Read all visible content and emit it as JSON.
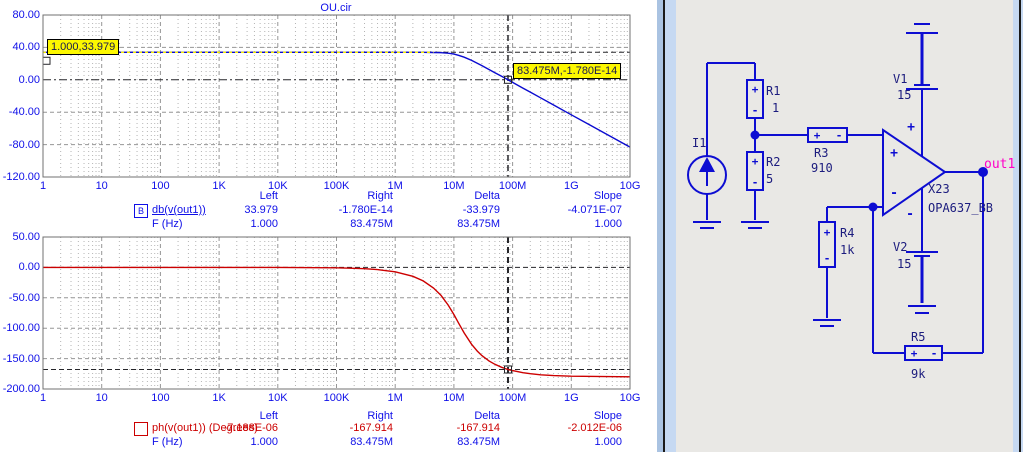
{
  "window": {
    "title": "OU.cir"
  },
  "colors": {
    "axis_text": "#0f0fe8",
    "mag_trace": "#0b0bd0",
    "phase_trace": "#cc0000",
    "grid_major": "#969696",
    "grid_minor": "#b4b4b4",
    "cursor_line": "#26262a",
    "cursor_highlight": "#f5ec00",
    "cursor_label_bg": "#fdf800",
    "wire": "#0d0dd2",
    "component_text": "#1c1c7e",
    "node_text": "#ff00c8",
    "schematic_bg": "#e9e8e5"
  },
  "bode": {
    "xticks": [
      "1",
      "10",
      "100",
      "1K",
      "10K",
      "100K",
      "1M",
      "10M",
      "100M",
      "1G",
      "10G"
    ],
    "mag": {
      "yticks": [
        "80.00",
        "40.00",
        "0.00",
        "-40.00",
        "-80.00",
        "-120.00"
      ],
      "legend": "db(v(out1))",
      "legend_box": "B",
      "xlabel_row": "F (Hz)"
    },
    "phase": {
      "yticks": [
        "50.00",
        "0.00",
        "-50.00",
        "-100.00",
        "-150.00",
        "-200.00"
      ],
      "legend": "ph(v(out1)) (Degrees)",
      "xlabel_row": "F (Hz)"
    },
    "cursor_left_label": "1.000,33.979",
    "cursor_right_label": "83.475M,-1.780E-14",
    "table_headers": [
      "Left",
      "Right",
      "Delta",
      "Slope"
    ],
    "mag_values": [
      "33.979",
      "-1.780E-14",
      "-33.979",
      "-4.071E-07"
    ],
    "mag_freqs": [
      "1.000",
      "83.475M",
      "83.475M",
      "1.000"
    ],
    "phase_values": [
      "-7.188E-06",
      "-167.914",
      "-167.914",
      "-2.012E-06"
    ],
    "phase_freqs": [
      "1.000",
      "83.475M",
      "83.475M",
      "1.000"
    ]
  },
  "chart_data": [
    {
      "type": "line",
      "title": "OU.cir",
      "xlabel": "F (Hz)",
      "ylabel": "db(v(out1))",
      "xscale": "log",
      "xlim": [
        1,
        10000000000
      ],
      "ylim": [
        -120,
        80
      ],
      "yticks": [
        80,
        40,
        0,
        -40,
        -80,
        -120
      ],
      "grid": true,
      "cursors": {
        "left": {
          "f": 1.0,
          "value": 33.979
        },
        "right": {
          "f": 83475000,
          "value": -1.78e-14
        },
        "delta": -33.979,
        "slope": -4.071e-07
      },
      "series": [
        {
          "name": "db(v(out1))",
          "color": "#0b0bd0",
          "points": [
            [
              1,
              33.979
            ],
            [
              10,
              33.979
            ],
            [
              100,
              33.979
            ],
            [
              1000,
              33.979
            ],
            [
              10000,
              33.979
            ],
            [
              100000,
              33.978
            ],
            [
              300000,
              33.97
            ],
            [
              1000000,
              33.97
            ],
            [
              2000000,
              33.95
            ],
            [
              3000000,
              33.89
            ],
            [
              4500000,
              33.7
            ],
            [
              6000000,
              33.44
            ],
            [
              8000000,
              32.8
            ],
            [
              10000000,
              31.7
            ],
            [
              12000000,
              30.3
            ],
            [
              15000000,
              27.9
            ],
            [
              20000000,
              24.0
            ],
            [
              30000000,
              17.5
            ],
            [
              40000000,
              12.6
            ],
            [
              50000000,
              8.8
            ],
            [
              65000000,
              4.3
            ],
            [
              83475000,
              0.0
            ],
            [
              100000000,
              -3.2
            ],
            [
              150000000,
              -10.2
            ],
            [
              200000000,
              -15.2
            ],
            [
              300000000,
              -22.2
            ],
            [
              500000000,
              -31.1
            ],
            [
              1000000000,
              -43.2
            ],
            [
              2000000000,
              -55.2
            ],
            [
              5000000000,
              -71.1
            ],
            [
              10000000000,
              -83.1
            ]
          ]
        }
      ]
    },
    {
      "type": "line",
      "xlabel": "F (Hz)",
      "ylabel": "ph(v(out1)) (Degrees)",
      "xscale": "log",
      "xlim": [
        1,
        10000000000
      ],
      "ylim": [
        -200,
        50
      ],
      "yticks": [
        50,
        0,
        -50,
        -100,
        -150,
        -200
      ],
      "grid": true,
      "cursors": {
        "left": {
          "f": 1.0,
          "value": -7.188e-06
        },
        "right": {
          "f": 83475000,
          "value": -167.914
        },
        "delta": -167.914,
        "slope": -2.012e-06
      },
      "series": [
        {
          "name": "ph(v(out1)) (Degrees)",
          "color": "#cc0000",
          "points": [
            [
              1,
              0
            ],
            [
              1000,
              -0.01
            ],
            [
              10000,
              -0.07
            ],
            [
              100000,
              -0.73
            ],
            [
              200000,
              -1.46
            ],
            [
              300000,
              -2.2
            ],
            [
              500000,
              -3.65
            ],
            [
              1000000,
              -7.3
            ],
            [
              2000000,
              -14.7
            ],
            [
              3000000,
              -22.2
            ],
            [
              4500000,
              -33.8
            ],
            [
              6000000,
              -45.8
            ],
            [
              8000000,
              -62.0
            ],
            [
              10000000,
              -77.5
            ],
            [
              12000000,
              -91.3
            ],
            [
              15000000,
              -107.9
            ],
            [
              20000000,
              -126.4
            ],
            [
              25000000,
              -137.7
            ],
            [
              30000000,
              -145.1
            ],
            [
              40000000,
              -154.1
            ],
            [
              50000000,
              -159.4
            ],
            [
              65000000,
              -164.3
            ],
            [
              83475000,
              -167.9
            ],
            [
              100000000,
              -169.8
            ],
            [
              150000000,
              -173.2
            ],
            [
              200000000,
              -174.9
            ],
            [
              300000000,
              -176.6
            ],
            [
              500000000,
              -178.0
            ],
            [
              1000000000,
              -179.0
            ],
            [
              10000000000,
              -179.9
            ]
          ]
        }
      ]
    }
  ],
  "schematic": {
    "components": [
      {
        "id": "I1",
        "label": "I1",
        "value": ""
      },
      {
        "id": "R1",
        "label": "R1",
        "value": "1"
      },
      {
        "id": "R2",
        "label": "R2",
        "value": "5"
      },
      {
        "id": "R3",
        "label": "R3",
        "value": "910"
      },
      {
        "id": "R4",
        "label": "R4",
        "value": "1k"
      },
      {
        "id": "R5",
        "label": "R5",
        "value": "9k"
      },
      {
        "id": "V1",
        "label": "V1",
        "value": "15"
      },
      {
        "id": "V2",
        "label": "V2",
        "value": "15"
      },
      {
        "id": "X23",
        "label": "X23",
        "value": "OPA637_BB"
      }
    ],
    "node_label": "out1",
    "plus": "+",
    "minus": "-"
  }
}
